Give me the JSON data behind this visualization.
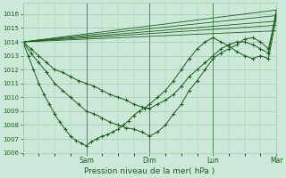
{
  "bg_color": "#cce8d8",
  "grid_color": "#99ccaa",
  "line_color": "#1a5c1a",
  "marker_color": "#1a5c1a",
  "xlabel": "Pression niveau de la mer( hPa )",
  "ylim": [
    1006,
    1016.8
  ],
  "yticks": [
    1006,
    1007,
    1008,
    1009,
    1010,
    1011,
    1012,
    1013,
    1014,
    1015,
    1016
  ],
  "xlim": [
    0,
    96
  ],
  "xtick_positions": [
    0,
    24,
    48,
    72,
    96
  ],
  "xtick_labels": [
    "",
    "Sam",
    "Dim",
    "Lun",
    "Mar"
  ],
  "straight_lines": [
    {
      "x0": 0,
      "y0": 1014.0,
      "x1": 96,
      "y1": 1016.3
    },
    {
      "x0": 0,
      "y0": 1014.0,
      "x1": 96,
      "y1": 1015.9
    },
    {
      "x0": 0,
      "y0": 1014.0,
      "x1": 96,
      "y1": 1015.5
    },
    {
      "x0": 0,
      "y0": 1014.0,
      "x1": 96,
      "y1": 1015.2
    },
    {
      "x0": 0,
      "y0": 1014.0,
      "x1": 96,
      "y1": 1014.8
    }
  ],
  "series": [
    {
      "x": [
        0,
        3,
        6,
        9,
        12,
        15,
        18,
        21,
        24,
        27,
        30,
        33,
        36,
        39,
        42,
        45,
        48,
        51,
        54,
        57,
        60,
        63,
        66,
        69,
        72,
        75,
        78,
        81,
        84,
        87,
        90,
        93,
        96
      ],
      "y": [
        1014.0,
        1013.5,
        1013.0,
        1012.5,
        1012.0,
        1011.8,
        1011.5,
        1011.2,
        1011.0,
        1010.8,
        1010.5,
        1010.2,
        1010.0,
        1009.8,
        1009.5,
        1009.3,
        1009.2,
        1009.5,
        1009.8,
        1010.2,
        1010.8,
        1011.5,
        1012.0,
        1012.5,
        1013.0,
        1013.5,
        1013.8,
        1014.0,
        1014.0,
        1013.8,
        1013.5,
        1013.2,
        1016.3
      ],
      "marker": true
    },
    {
      "x": [
        0,
        3,
        6,
        9,
        12,
        15,
        18,
        21,
        24,
        27,
        30,
        33,
        36,
        39,
        42,
        45,
        48,
        51,
        54,
        57,
        60,
        63,
        66,
        69,
        72,
        75,
        78,
        81,
        84,
        87,
        90,
        93,
        96
      ],
      "y": [
        1014.0,
        1013.2,
        1012.5,
        1011.8,
        1011.0,
        1010.5,
        1010.0,
        1009.5,
        1009.0,
        1008.8,
        1008.5,
        1008.2,
        1008.0,
        1007.8,
        1007.7,
        1007.5,
        1007.2,
        1007.5,
        1008.0,
        1008.8,
        1009.5,
        1010.5,
        1011.2,
        1012.0,
        1012.8,
        1013.2,
        1013.5,
        1013.8,
        1014.2,
        1014.3,
        1014.0,
        1013.5,
        1016.0
      ],
      "marker": true
    },
    {
      "x": [
        0,
        2,
        4,
        6,
        8,
        10,
        12,
        14,
        16,
        18,
        20,
        22,
        24,
        26,
        28,
        30,
        32,
        34,
        36,
        38,
        40,
        42,
        44,
        46,
        48,
        51,
        54,
        57,
        60,
        63,
        66,
        69,
        72,
        75,
        78,
        81,
        84,
        87,
        90,
        93,
        96
      ],
      "y": [
        1014.0,
        1013.0,
        1012.0,
        1011.0,
        1010.2,
        1009.5,
        1008.8,
        1008.2,
        1007.7,
        1007.2,
        1006.9,
        1006.7,
        1006.5,
        1006.8,
        1007.0,
        1007.2,
        1007.3,
        1007.5,
        1007.7,
        1008.0,
        1008.3,
        1008.7,
        1009.0,
        1009.2,
        1009.5,
        1010.0,
        1010.5,
        1011.2,
        1012.0,
        1012.8,
        1013.5,
        1014.0,
        1014.3,
        1014.0,
        1013.7,
        1013.3,
        1013.0,
        1012.8,
        1013.0,
        1012.8,
        1015.8
      ],
      "marker": true
    }
  ],
  "vlines": [
    24,
    48,
    72,
    96
  ]
}
